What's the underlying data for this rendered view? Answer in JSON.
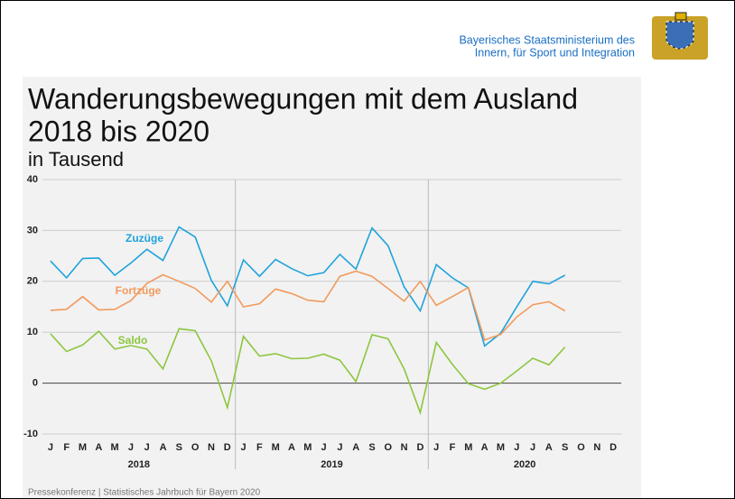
{
  "header": {
    "ministry": [
      "Bayerisches Staatsministerium des",
      "Innern, für Sport und Integration"
    ]
  },
  "footer": "Pressekonferenz | Statistisches Jahrbuch für Bayern 2020",
  "chart_data": {
    "type": "line",
    "title": [
      "Wanderungsbewegungen mit dem Ausland",
      "2018 bis 2020"
    ],
    "subtitle": "in Tausend",
    "categories": [
      "J",
      "F",
      "M",
      "A",
      "M",
      "J",
      "J",
      "A",
      "S",
      "O",
      "N",
      "D",
      "J",
      "F",
      "M",
      "A",
      "M",
      "J",
      "J",
      "A",
      "S",
      "O",
      "N",
      "D",
      "J",
      "F",
      "M",
      "A",
      "M",
      "J",
      "J",
      "A",
      "S",
      "O",
      "N",
      "D"
    ],
    "years": [
      "2018",
      "2019",
      "2020"
    ],
    "series": [
      {
        "name": "Zuzüge",
        "color": "#1fa3dc",
        "values": [
          24,
          20.7,
          24.5,
          24.6,
          21.2,
          23.6,
          26.3,
          24.1,
          30.7,
          28.7,
          20.2,
          15.2,
          24.2,
          21,
          24.3,
          22.5,
          21.1,
          21.7,
          25.3,
          22.4,
          30.5,
          27,
          18.9,
          14.2,
          23.3,
          20.7,
          18.7,
          7.3,
          9.8,
          15,
          20,
          19.5,
          21.2,
          null,
          null,
          null
        ]
      },
      {
        "name": "Fortzüge",
        "color": "#f29a5c",
        "values": [
          14.3,
          14.5,
          17,
          14.4,
          14.5,
          16.2,
          19.6,
          21.3,
          20,
          18.6,
          15.9,
          20,
          15,
          15.6,
          18.5,
          17.6,
          16.3,
          16,
          21,
          22,
          21,
          18.6,
          16.1,
          20,
          15.3,
          17,
          18.8,
          8.5,
          9.6,
          13,
          15.4,
          16,
          14.2,
          null,
          null,
          null
        ]
      },
      {
        "name": "Saldo",
        "color": "#8dc63f",
        "values": [
          9.7,
          6.2,
          7.5,
          10.2,
          6.7,
          7.4,
          6.7,
          2.8,
          10.7,
          10.3,
          4.4,
          -4.8,
          9.2,
          5.3,
          5.8,
          4.8,
          4.9,
          5.7,
          4.5,
          0.3,
          9.5,
          8.7,
          2.8,
          -5.8,
          8,
          3.7,
          -0.1,
          -1.2,
          0,
          2.4,
          4.9,
          3.6,
          7.1,
          null,
          null,
          null
        ]
      }
    ],
    "ylim": [
      -10,
      40
    ],
    "yticks": [
      -10,
      0,
      10,
      20,
      30,
      40
    ],
    "grid": true
  }
}
